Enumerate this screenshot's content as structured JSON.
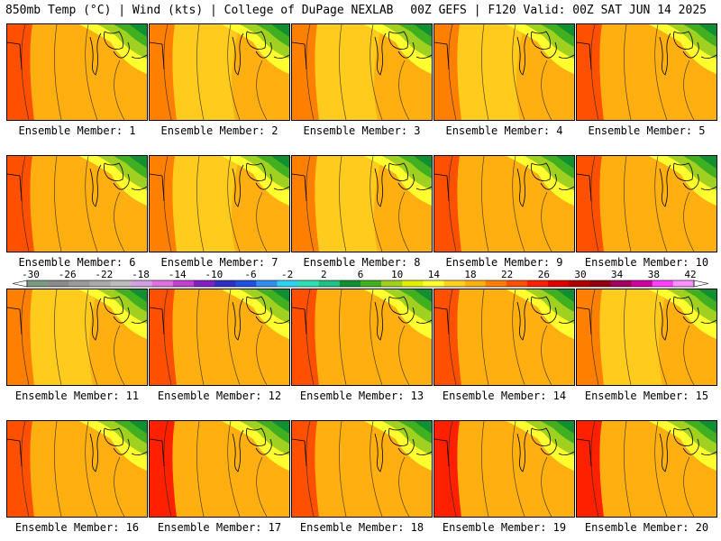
{
  "header": {
    "left_title": "850mb Temp (°C) | Wind (kts) | College of DuPage NEXLAB",
    "right_title": "00Z GEFS | F120 Valid: 00Z SAT JUN 14 2025"
  },
  "panels": [
    {
      "label": "Ensemble Member: 1",
      "variant": "warm-west"
    },
    {
      "label": "Ensemble Member: 2",
      "variant": "mild"
    },
    {
      "label": "Ensemble Member: 3",
      "variant": "mild"
    },
    {
      "label": "Ensemble Member: 4",
      "variant": "mild"
    },
    {
      "label": "Ensemble Member: 5",
      "variant": "warm-west"
    },
    {
      "label": "Ensemble Member: 6",
      "variant": "warm-west"
    },
    {
      "label": "Ensemble Member: 7",
      "variant": "mild"
    },
    {
      "label": "Ensemble Member: 8",
      "variant": "mild"
    },
    {
      "label": "Ensemble Member: 9",
      "variant": "warm-west"
    },
    {
      "label": "Ensemble Member: 10",
      "variant": "warm-west"
    },
    {
      "label": "Ensemble Member: 11",
      "variant": "mild"
    },
    {
      "label": "Ensemble Member: 12",
      "variant": "warm-west"
    },
    {
      "label": "Ensemble Member: 13",
      "variant": "warm-west"
    },
    {
      "label": "Ensemble Member: 14",
      "variant": "warm-west"
    },
    {
      "label": "Ensemble Member: 15",
      "variant": "mild"
    },
    {
      "label": "Ensemble Member: 16",
      "variant": "warm-west"
    },
    {
      "label": "Ensemble Member: 17",
      "variant": "hot-west"
    },
    {
      "label": "Ensemble Member: 18",
      "variant": "warm-west"
    },
    {
      "label": "Ensemble Member: 19",
      "variant": "hot-west"
    },
    {
      "label": "Ensemble Member: 20",
      "variant": "hot-west"
    }
  ],
  "colorbar": {
    "ticks": [
      "-30",
      "-26",
      "-22",
      "-18",
      "-14",
      "-10",
      "-6",
      "-2",
      "2",
      "6",
      "10",
      "14",
      "18",
      "22",
      "26",
      "30",
      "34",
      "38",
      "42"
    ],
    "colors": [
      "#7a9a84",
      "#8a8a8a",
      "#9a9a9a",
      "#aaaaaa",
      "#bcbcbc",
      "#d0a0e0",
      "#e070e0",
      "#c040d0",
      "#8020c0",
      "#3030c0",
      "#2050e0",
      "#3090f0",
      "#30d0f0",
      "#30e0b0",
      "#20c080",
      "#109030",
      "#40b020",
      "#a0d020",
      "#e0f000",
      "#ffff30",
      "#ffd020",
      "#ffb010",
      "#ff8000",
      "#ff5000",
      "#ff2000",
      "#e00000",
      "#b00000",
      "#900010",
      "#a00060",
      "#d000a0",
      "#ff40ff",
      "#ff90ff"
    ]
  },
  "palette": {
    "dark_green": "#109030",
    "green": "#40b020",
    "yellow_green": "#a0d020",
    "yellow": "#ffff30",
    "gold": "#ffd020",
    "orange": "#ffb010",
    "dark_orange": "#ff8000",
    "red_orange": "#ff5000",
    "red": "#ff2000"
  }
}
